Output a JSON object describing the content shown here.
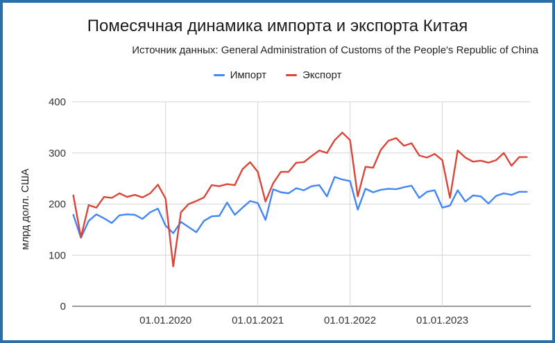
{
  "chart_data": {
    "type": "line",
    "title": "Помесячная динамика импорта и экспорта Китая",
    "subtitle": "Источник данных: General Administration of Customs of the People's Republic of China",
    "xlabel": "",
    "ylabel": "млрд долл. США",
    "ylim": [
      0,
      400
    ],
    "yticks": [
      0,
      100,
      200,
      300,
      400
    ],
    "xlim": [
      "2019-01",
      "2023-12"
    ],
    "xtick_labels": [
      {
        "x": "2020-01",
        "label": "01.01.2020"
      },
      {
        "x": "2021-01",
        "label": "01.01.2021"
      },
      {
        "x": "2022-01",
        "label": "01.01.2022"
      },
      {
        "x": "2023-01",
        "label": "01.01.2023"
      }
    ],
    "grid": {
      "horizontal": true,
      "vertical": true
    },
    "legend_position": "top",
    "x": [
      "2019-01",
      "2019-02",
      "2019-03",
      "2019-04",
      "2019-05",
      "2019-06",
      "2019-07",
      "2019-08",
      "2019-09",
      "2019-10",
      "2019-11",
      "2019-12",
      "2020-01",
      "2020-02",
      "2020-03",
      "2020-04",
      "2020-05",
      "2020-06",
      "2020-07",
      "2020-08",
      "2020-09",
      "2020-10",
      "2020-11",
      "2020-12",
      "2021-01",
      "2021-02",
      "2021-03",
      "2021-04",
      "2021-05",
      "2021-06",
      "2021-07",
      "2021-08",
      "2021-09",
      "2021-10",
      "2021-11",
      "2021-12",
      "2022-01",
      "2022-02",
      "2022-03",
      "2022-04",
      "2022-05",
      "2022-06",
      "2022-07",
      "2022-08",
      "2022-09",
      "2022-10",
      "2022-11",
      "2022-12",
      "2023-01",
      "2023-02",
      "2023-03",
      "2023-04",
      "2023-05",
      "2023-06",
      "2023-07",
      "2023-08",
      "2023-09",
      "2023-10",
      "2023-11",
      "2023-12"
    ],
    "series": [
      {
        "name": "Импорт",
        "color": "#4285f4",
        "values": [
          179,
          134,
          167,
          180,
          172,
          163,
          178,
          180,
          179,
          171,
          184,
          191,
          158,
          143,
          165,
          155,
          145,
          167,
          176,
          177,
          203,
          179,
          193,
          206,
          202,
          169,
          229,
          223,
          221,
          231,
          227,
          235,
          237,
          215,
          253,
          248,
          245,
          189,
          230,
          223,
          228,
          230,
          229,
          233,
          236,
          212,
          224,
          227,
          193,
          197,
          227,
          205,
          217,
          215,
          201,
          216,
          221,
          218,
          224,
          224
        ]
      },
      {
        "name": "Экспорт",
        "color": "#db4437",
        "values": [
          217,
          135,
          198,
          193,
          214,
          212,
          221,
          214,
          218,
          213,
          221,
          238,
          211,
          78,
          184,
          200,
          206,
          213,
          237,
          235,
          239,
          237,
          268,
          282,
          263,
          205,
          241,
          263,
          263,
          281,
          282,
          294,
          305,
          300,
          325,
          340,
          325,
          215,
          273,
          271,
          306,
          324,
          329,
          314,
          319,
          295,
          291,
          298,
          286,
          212,
          305,
          291,
          283,
          285,
          281,
          286,
          300,
          275,
          292,
          292
        ]
      }
    ]
  }
}
